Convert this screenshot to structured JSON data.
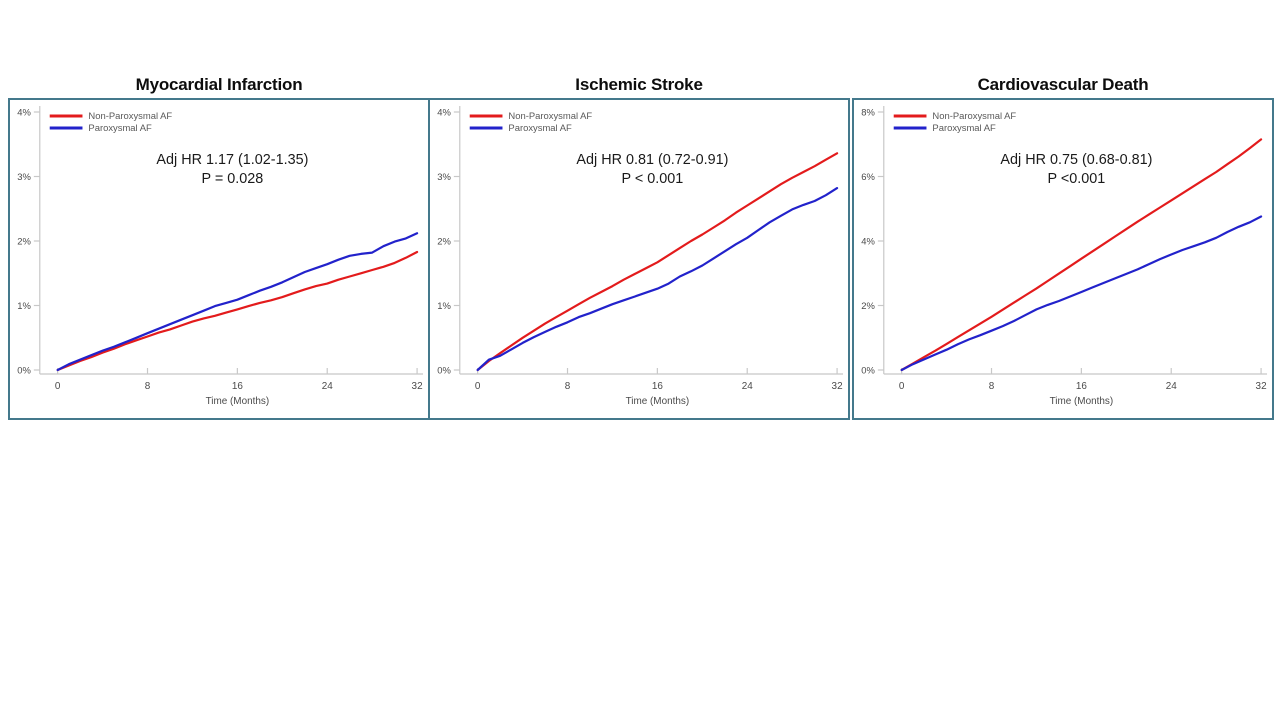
{
  "figure": {
    "background": "#ffffff",
    "panel_border_color": "#44798c",
    "axis_line_color": "#c8c8c8",
    "tick_label_color": "#4a4a4a",
    "legend_label_color": "#595959",
    "annotation_color": "#1a1a1a",
    "title_color": "#0d0d0d"
  },
  "chart_data": [
    {
      "type": "line",
      "title": "Myocardial Infarction",
      "annotation_line1": "Adj HR 1.17 (1.02-1.35)",
      "annotation_line2": "P = 0.028",
      "xlabel": "Time (Months)",
      "x_ticks": [
        0,
        8,
        16,
        24,
        32
      ],
      "xlim": [
        0,
        32
      ],
      "ylim": [
        0,
        4
      ],
      "y_tick_values": [
        0,
        1,
        2,
        3,
        4
      ],
      "y_tick_labels": [
        "0%",
        "1%",
        "2%",
        "3%",
        "4%"
      ],
      "legend_position": "top-left",
      "grid": false,
      "x": [
        0,
        1,
        2,
        3,
        4,
        5,
        6,
        7,
        8,
        9,
        10,
        11,
        12,
        13,
        14,
        15,
        16,
        17,
        18,
        19,
        20,
        21,
        22,
        23,
        24,
        25,
        26,
        27,
        28,
        29,
        30,
        31,
        32
      ],
      "series": [
        {
          "name": "Non-Paroxysmal AF",
          "color": "#e31b1c",
          "values": [
            0,
            0.07,
            0.14,
            0.2,
            0.27,
            0.33,
            0.4,
            0.46,
            0.52,
            0.58,
            0.63,
            0.69,
            0.75,
            0.8,
            0.84,
            0.89,
            0.94,
            0.99,
            1.04,
            1.08,
            1.13,
            1.19,
            1.25,
            1.3,
            1.34,
            1.4,
            1.45,
            1.5,
            1.55,
            1.6,
            1.66,
            1.74,
            1.83
          ]
        },
        {
          "name": "Paroxysmal AF",
          "color": "#2222cb",
          "values": [
            0,
            0.09,
            0.16,
            0.23,
            0.3,
            0.36,
            0.43,
            0.5,
            0.57,
            0.64,
            0.71,
            0.78,
            0.85,
            0.92,
            0.99,
            1.04,
            1.09,
            1.16,
            1.23,
            1.29,
            1.36,
            1.44,
            1.52,
            1.58,
            1.64,
            1.71,
            1.77,
            1.8,
            1.82,
            1.92,
            1.99,
            2.04,
            2.12
          ]
        }
      ]
    },
    {
      "type": "line",
      "title": "Ischemic Stroke",
      "annotation_line1": "Adj HR 0.81 (0.72-0.91)",
      "annotation_line2": "P < 0.001",
      "xlabel": "Time (Months)",
      "x_ticks": [
        0,
        8,
        16,
        24,
        32
      ],
      "xlim": [
        0,
        32
      ],
      "ylim": [
        0,
        4
      ],
      "y_tick_values": [
        0,
        1,
        2,
        3,
        4
      ],
      "y_tick_labels": [
        "0%",
        "1%",
        "2%",
        "3%",
        "4%"
      ],
      "legend_position": "top-left",
      "grid": false,
      "x": [
        0,
        1,
        2,
        3,
        4,
        5,
        6,
        7,
        8,
        9,
        10,
        11,
        12,
        13,
        14,
        15,
        16,
        17,
        18,
        19,
        20,
        21,
        22,
        23,
        24,
        25,
        26,
        27,
        28,
        29,
        30,
        31,
        32
      ],
      "series": [
        {
          "name": "Non-Paroxysmal AF",
          "color": "#e31b1c",
          "values": [
            0,
            0.14,
            0.26,
            0.38,
            0.5,
            0.61,
            0.72,
            0.82,
            0.92,
            1.02,
            1.12,
            1.21,
            1.3,
            1.4,
            1.49,
            1.58,
            1.67,
            1.78,
            1.89,
            2.0,
            2.1,
            2.21,
            2.32,
            2.44,
            2.55,
            2.66,
            2.77,
            2.88,
            2.98,
            3.07,
            3.16,
            3.26,
            3.36
          ]
        },
        {
          "name": "Paroxysmal AF",
          "color": "#2222cb",
          "values": [
            0,
            0.16,
            0.22,
            0.32,
            0.42,
            0.51,
            0.59,
            0.67,
            0.74,
            0.82,
            0.88,
            0.95,
            1.02,
            1.08,
            1.14,
            1.2,
            1.26,
            1.34,
            1.45,
            1.53,
            1.62,
            1.73,
            1.84,
            1.95,
            2.05,
            2.17,
            2.29,
            2.39,
            2.49,
            2.56,
            2.62,
            2.71,
            2.82
          ]
        }
      ]
    },
    {
      "type": "line",
      "title": "Cardiovascular Death",
      "annotation_line1": "Adj HR 0.75 (0.68-0.81)",
      "annotation_line2": "P <0.001",
      "xlabel": "Time (Months)",
      "x_ticks": [
        0,
        8,
        16,
        24,
        32
      ],
      "xlim": [
        0,
        32
      ],
      "ylim": [
        0,
        8
      ],
      "y_tick_values": [
        0,
        2,
        4,
        6,
        8
      ],
      "y_tick_labels": [
        "0%",
        "2%",
        "4%",
        "6%",
        "8%"
      ],
      "legend_position": "top-left",
      "grid": false,
      "x": [
        0,
        1,
        2,
        3,
        4,
        5,
        6,
        7,
        8,
        9,
        10,
        11,
        12,
        13,
        14,
        15,
        16,
        17,
        18,
        19,
        20,
        21,
        22,
        23,
        24,
        25,
        26,
        27,
        28,
        29,
        30,
        31,
        32
      ],
      "series": [
        {
          "name": "Non-Paroxysmal AF",
          "color": "#e31b1c",
          "values": [
            0,
            0.2,
            0.4,
            0.6,
            0.81,
            1.02,
            1.23,
            1.44,
            1.65,
            1.87,
            2.09,
            2.31,
            2.53,
            2.76,
            2.99,
            3.22,
            3.45,
            3.68,
            3.91,
            4.14,
            4.37,
            4.6,
            4.82,
            5.04,
            5.26,
            5.48,
            5.7,
            5.92,
            6.14,
            6.38,
            6.62,
            6.88,
            7.15
          ]
        },
        {
          "name": "Paroxysmal AF",
          "color": "#2222cb",
          "values": [
            0,
            0.18,
            0.33,
            0.48,
            0.63,
            0.8,
            0.95,
            1.08,
            1.22,
            1.36,
            1.52,
            1.7,
            1.88,
            2.02,
            2.14,
            2.28,
            2.42,
            2.56,
            2.7,
            2.84,
            2.98,
            3.12,
            3.28,
            3.44,
            3.58,
            3.72,
            3.84,
            3.96,
            4.1,
            4.28,
            4.44,
            4.58,
            4.76
          ]
        }
      ]
    }
  ]
}
